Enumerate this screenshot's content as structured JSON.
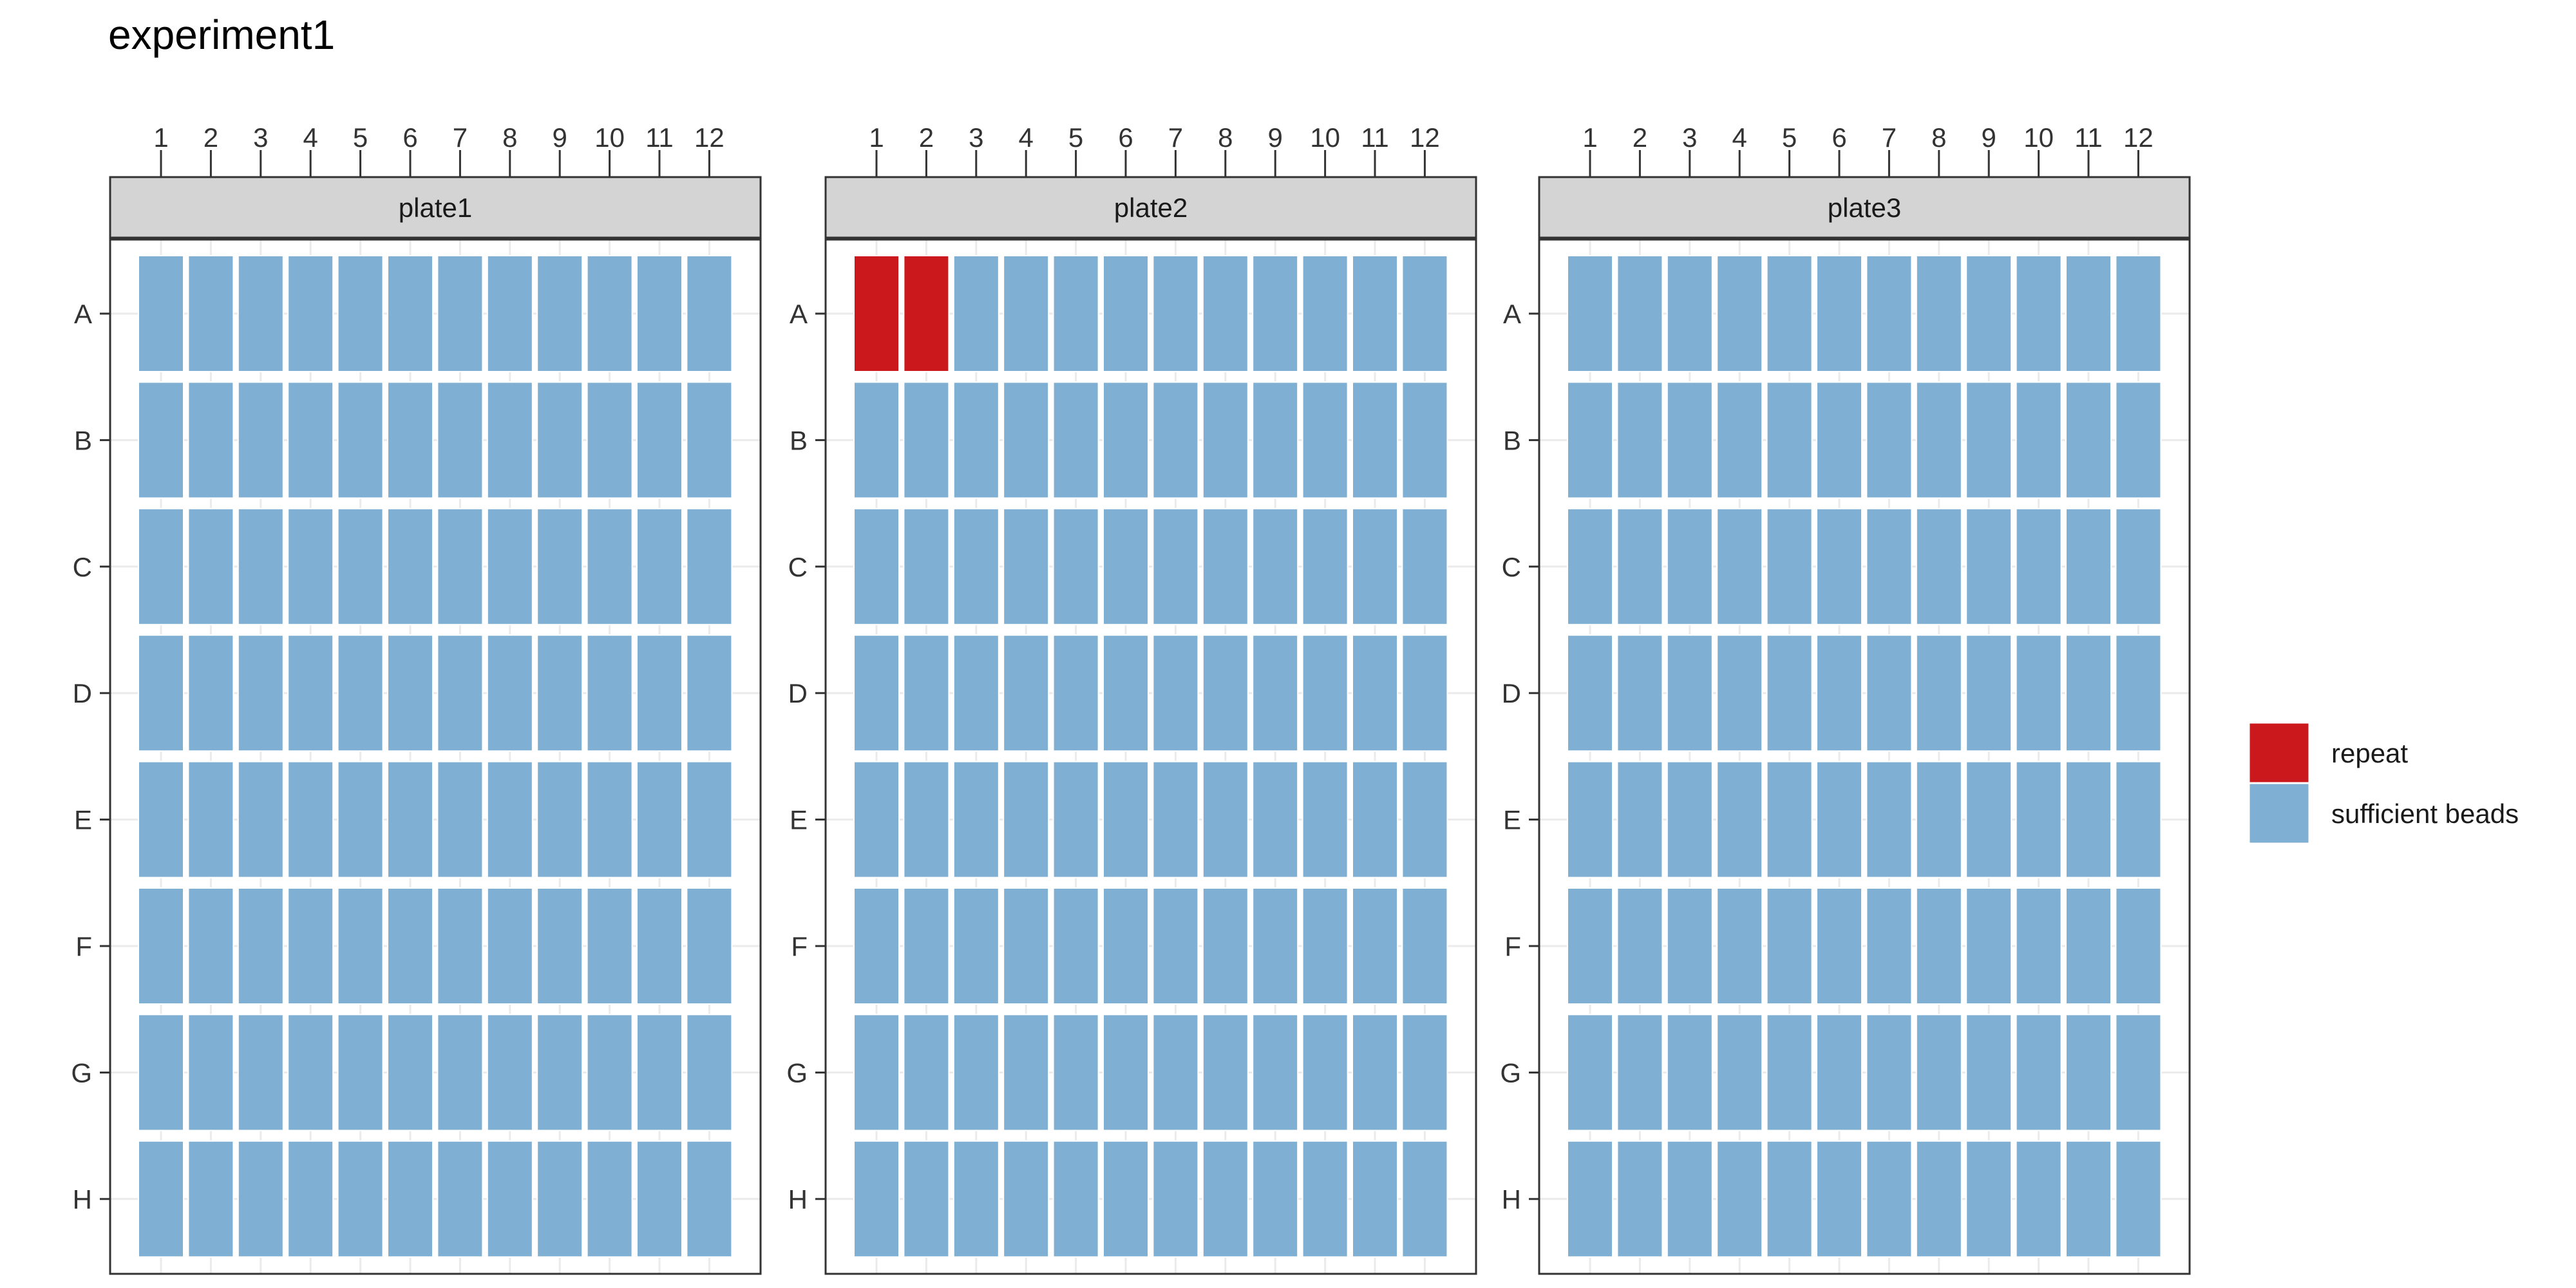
{
  "chart_data": {
    "type": "heatmap",
    "title": "experiment1",
    "columns": [
      "1",
      "2",
      "3",
      "4",
      "5",
      "6",
      "7",
      "8",
      "9",
      "10",
      "11",
      "12"
    ],
    "rows": [
      "A",
      "B",
      "C",
      "D",
      "E",
      "F",
      "G",
      "H"
    ],
    "categories": [
      {
        "name": "repeat",
        "color": "#cb181d"
      },
      {
        "name": "sufficient beads",
        "color": "#7fafd2"
      }
    ],
    "default_category": "sufficient beads",
    "legend_position": "right",
    "grid": true,
    "panels": [
      {
        "name": "plate1",
        "wells": []
      },
      {
        "name": "plate2",
        "wells": [
          {
            "row": "A",
            "col": "1",
            "category": "repeat"
          },
          {
            "row": "A",
            "col": "2",
            "category": "repeat"
          }
        ]
      },
      {
        "name": "plate3",
        "wells": []
      }
    ]
  },
  "colors": {
    "strip_fill": "#d4d4d4",
    "panel_border": "#333333",
    "gridline": "#ebebeb",
    "axis_text": "#333333",
    "tile_border": "#ffffff"
  }
}
